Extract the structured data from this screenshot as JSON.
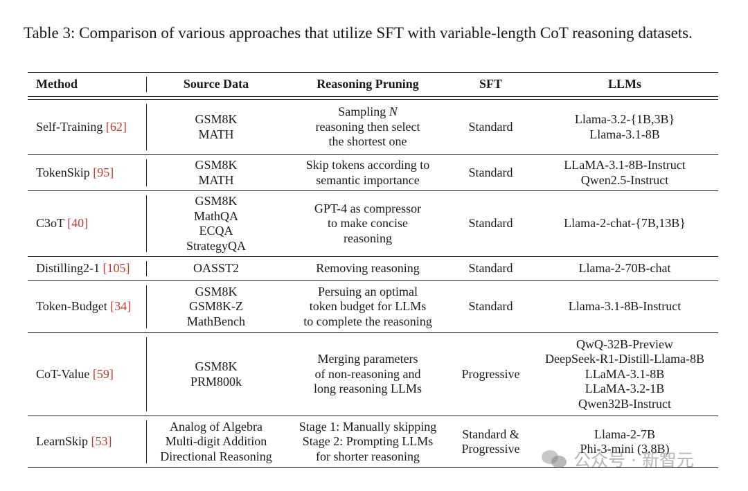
{
  "caption": "Table 3: Comparison of various approaches that utilize SFT with variable-length CoT reasoning datasets.",
  "headers": {
    "method": "Method",
    "source": "Source Data",
    "pruning": "Reasoning Pruning",
    "sft": "SFT",
    "llms": "LLMs"
  },
  "rows": [
    {
      "method": "Self-Training",
      "ref": "[62]",
      "source": [
        "GSM8K",
        "MATH"
      ],
      "pruning": [
        "Sampling N",
        "reasoning then select",
        "the shortest one"
      ],
      "sft": [
        "Standard"
      ],
      "llms": [
        "Llama-3.2-{1B,3B}",
        "Llama-3.1-8B"
      ]
    },
    {
      "method": "TokenSkip",
      "ref": "[95]",
      "source": [
        "GSM8K",
        "MATH"
      ],
      "pruning": [
        "Skip tokens according to",
        "semantic importance"
      ],
      "sft": [
        "Standard"
      ],
      "llms": [
        "LLaMA-3.1-8B-Instruct",
        "Qwen2.5-Instruct"
      ]
    },
    {
      "method": "C3oT",
      "ref": "[40]",
      "source": [
        "GSM8K",
        "MathQA",
        "ECQA",
        "StrategyQA"
      ],
      "pruning": [
        "GPT-4 as compressor",
        "to make concise",
        "reasoning"
      ],
      "sft": [
        "Standard"
      ],
      "llms": [
        "Llama-2-chat-{7B,13B}"
      ]
    },
    {
      "method": "Distilling2-1",
      "ref": "[105]",
      "source": [
        "OASST2"
      ],
      "pruning": [
        "Removing reasoning"
      ],
      "sft": [
        "Standard"
      ],
      "llms": [
        "Llama-2-70B-chat"
      ]
    },
    {
      "method": "Token-Budget",
      "ref": "[34]",
      "source": [
        "GSM8K",
        "GSM8K-Z",
        "MathBench"
      ],
      "pruning": [
        "Persuing an optimal",
        "token budget for LLMs",
        "to complete the reasoning"
      ],
      "sft": [
        "Standard"
      ],
      "llms": [
        "Llama-3.1-8B-Instruct"
      ]
    },
    {
      "method": "CoT-Value",
      "ref": "[59]",
      "source": [
        "GSM8K",
        "PRM800k"
      ],
      "pruning": [
        "Merging parameters",
        "of non-reasoning and",
        "long reasoning LLMs"
      ],
      "sft": [
        "Progressive"
      ],
      "llms": [
        "QwQ-32B-Preview",
        "DeepSeek-R1-Distill-Llama-8B",
        "LLaMA-3.1-8B",
        "LLaMA-3.2-1B",
        "Qwen32B-Instruct"
      ]
    },
    {
      "method": "LearnSkip",
      "ref": "[53]",
      "source": [
        "Analog of Algebra",
        "Multi-digit Addition",
        "Directional Reasoning"
      ],
      "pruning": [
        "Stage 1: Manually skipping",
        "Stage 2: Prompting LLMs",
        "for shorter reasoning"
      ],
      "sft": [
        "Standard &",
        "Progressive"
      ],
      "llms": [
        "Llama-2-7B",
        "Phi-3-mini (3.8B)"
      ]
    }
  ],
  "row_heights": [],
  "watermark": "公众号 · 新智元",
  "colors": {
    "reference": "#c0392b",
    "text": "#1a1a1a",
    "rule": "#111111"
  }
}
